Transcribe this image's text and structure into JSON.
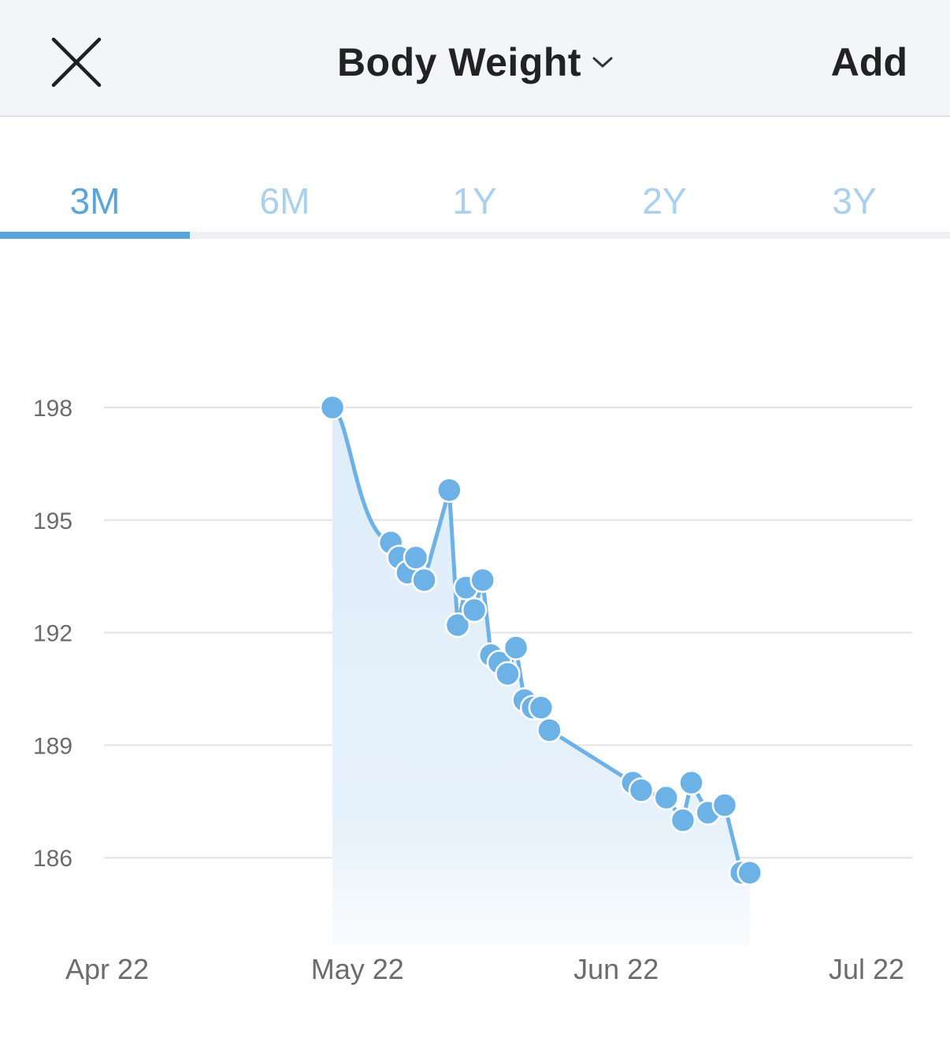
{
  "header": {
    "title": "Body Weight",
    "add_label": "Add"
  },
  "tabs": [
    {
      "label": "3M",
      "active": true
    },
    {
      "label": "6M",
      "active": false
    },
    {
      "label": "1Y",
      "active": false
    },
    {
      "label": "2Y",
      "active": false
    },
    {
      "label": "3Y",
      "active": false
    }
  ],
  "colors": {
    "accent": "#5aa5dc",
    "line": "#6cb2e6",
    "inactive_tab": "#a9d0ee",
    "fill": "#e4f0fa"
  },
  "icons": [
    "close-icon",
    "chevron-down-icon"
  ],
  "chart_data": {
    "type": "line",
    "title": "",
    "xlabel": "",
    "ylabel": "",
    "ylim": [
      183.6,
      199
    ],
    "xlim": [
      "2022-04-22",
      "2022-07-22"
    ],
    "yticks": [
      198,
      195,
      192,
      189,
      186
    ],
    "xticks": [
      {
        "label": "Apr 22",
        "date": "2022-04-22"
      },
      {
        "label": "May 22",
        "date": "2022-05-22"
      },
      {
        "label": "Jun 22",
        "date": "2022-06-22"
      },
      {
        "label": "Jul 22",
        "date": "2022-07-22"
      }
    ],
    "grid": true,
    "x": [
      "2022-05-19",
      "2022-05-26",
      "2022-05-27",
      "2022-05-28",
      "2022-05-29",
      "2022-05-30",
      "2022-06-02",
      "2022-06-03",
      "2022-06-04",
      "2022-06-05",
      "2022-06-06",
      "2022-06-07",
      "2022-06-08",
      "2022-06-09",
      "2022-06-10",
      "2022-06-11",
      "2022-06-12",
      "2022-06-13",
      "2022-06-14",
      "2022-06-24",
      "2022-06-25",
      "2022-06-28",
      "2022-06-30",
      "2022-07-01",
      "2022-07-03",
      "2022-07-05",
      "2022-07-07",
      "2022-07-08"
    ],
    "series": [
      {
        "values": [
          198.0,
          194.4,
          194.0,
          193.6,
          194.0,
          193.4,
          195.8,
          192.2,
          193.2,
          192.6,
          193.4,
          191.4,
          191.2,
          190.9,
          191.6,
          190.2,
          190.0,
          190.0,
          189.4,
          188.0,
          187.8,
          187.6,
          187.0,
          188.0,
          187.2,
          187.4,
          185.6,
          185.6
        ]
      }
    ]
  }
}
